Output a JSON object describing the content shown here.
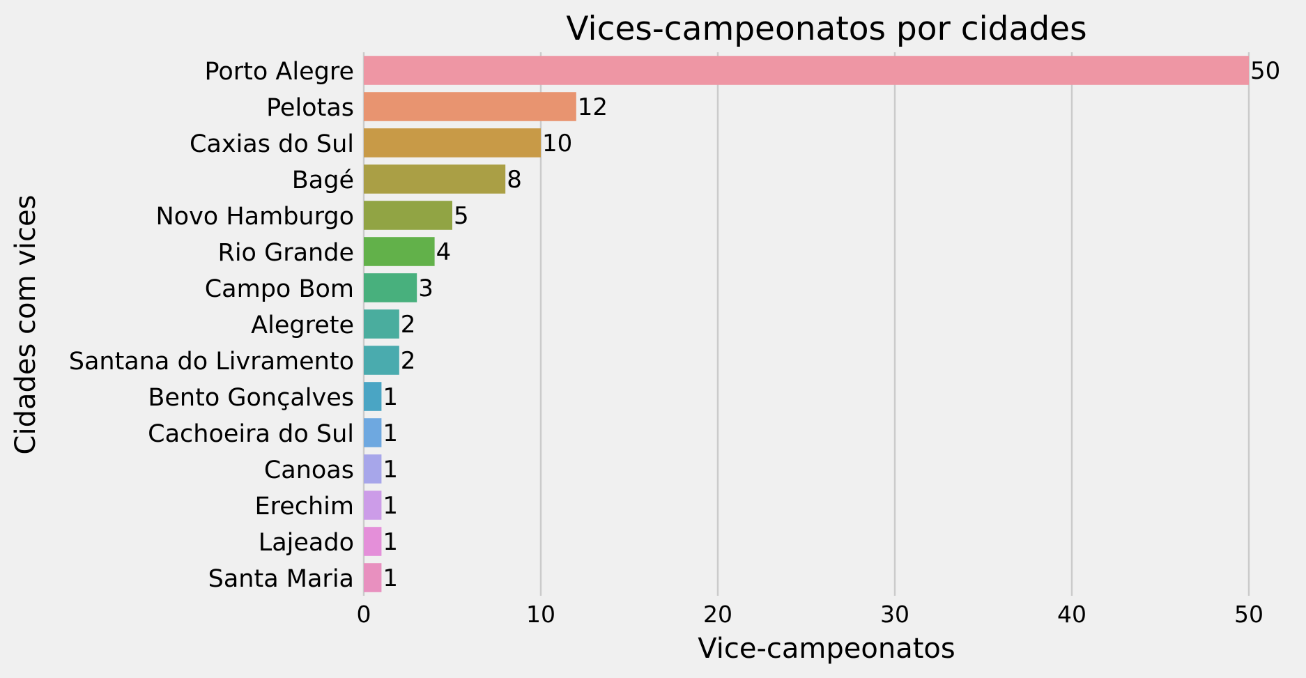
{
  "chart_data": {
    "type": "bar",
    "orientation": "horizontal",
    "title": "Vices-campeonatos por cidades",
    "xlabel": "Vice-campeonatos",
    "ylabel": "Cidades com vices",
    "xlim": [
      0,
      50
    ],
    "xticks": [
      0,
      10,
      20,
      30,
      40,
      50
    ],
    "grid": "vertical",
    "categories": [
      "Porto Alegre",
      "Pelotas",
      "Caxias do Sul",
      "Bagé",
      "Novo Hamburgo",
      "Rio Grande",
      "Campo Bom",
      "Alegrete",
      "Santana do Livramento",
      "Bento Gonçalves",
      "Cachoeira do Sul",
      "Canoas",
      "Erechim",
      "Lajeado",
      "Santa Maria"
    ],
    "values": [
      50,
      12,
      10,
      8,
      5,
      4,
      3,
      2,
      2,
      1,
      1,
      1,
      1,
      1,
      1
    ],
    "colors": [
      "#ee96a4",
      "#e89470",
      "#c89a47",
      "#aa9f45",
      "#91a444",
      "#62b14a",
      "#48b07d",
      "#4aad9e",
      "#4aabae",
      "#4aa5c4",
      "#6ea8e0",
      "#a7a6ea",
      "#cc9ce8",
      "#e48fd9",
      "#e890bf"
    ],
    "background": "#f0f0f0"
  }
}
